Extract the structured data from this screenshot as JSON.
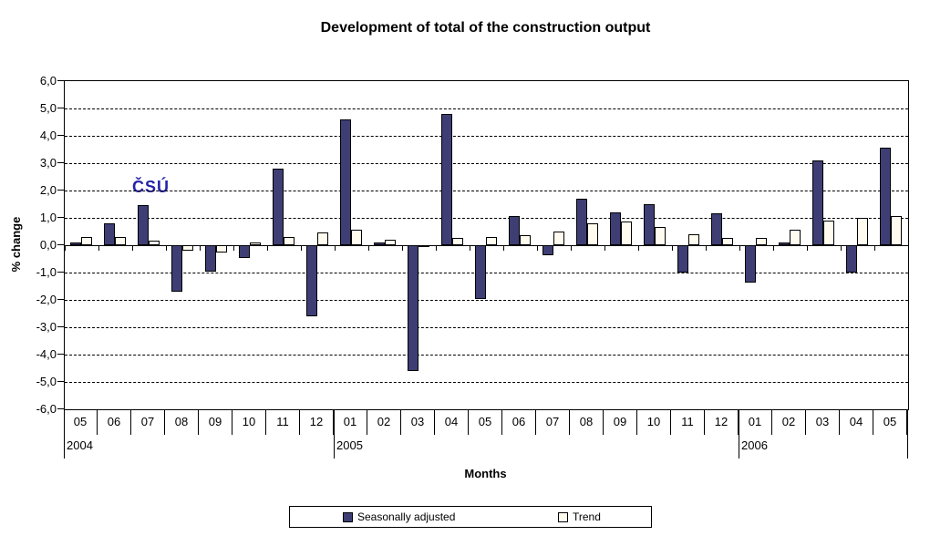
{
  "logo": {
    "text": "ČSÚ"
  },
  "chart_data": {
    "type": "bar",
    "title": "Development of total of the construction output",
    "xlabel": "Months",
    "ylabel": "% change",
    "ylim": [
      -6.0,
      6.0
    ],
    "ytick_step": 1.0,
    "grid": "horizontal-dashed",
    "decimal_separator": ",",
    "legend_position": "bottom",
    "ytick_labels": [
      "6,0",
      "5,0",
      "4,0",
      "3,0",
      "2,0",
      "1,0",
      "0,0",
      "-1,0",
      "-2,0",
      "-3,0",
      "-4,0",
      "-5,0",
      "-6,0"
    ],
    "categories": [
      "05",
      "06",
      "07",
      "08",
      "09",
      "10",
      "11",
      "12",
      "01",
      "02",
      "03",
      "04",
      "05",
      "06",
      "07",
      "08",
      "09",
      "10",
      "11",
      "12",
      "01",
      "02",
      "03",
      "04",
      "05"
    ],
    "year_groups": [
      {
        "label": "2004",
        "start": 0,
        "count": 8
      },
      {
        "label": "2005",
        "start": 8,
        "count": 12
      },
      {
        "label": "2006",
        "start": 20,
        "count": 5
      }
    ],
    "series": [
      {
        "name": "Seasonally adjusted",
        "color": "#3E3E75",
        "values": [
          0.1,
          0.8,
          1.45,
          -1.7,
          -0.95,
          -0.45,
          2.8,
          -2.6,
          4.6,
          0.1,
          -4.6,
          4.8,
          -1.95,
          1.05,
          -0.35,
          1.7,
          1.2,
          1.5,
          -1.0,
          1.15,
          -1.35,
          0.1,
          3.1,
          -1.0,
          3.55
        ]
      },
      {
        "name": "Trend",
        "color": "#FFFCEF",
        "values": [
          0.3,
          0.3,
          0.15,
          -0.2,
          -0.25,
          0.1,
          0.3,
          0.45,
          0.55,
          0.2,
          -0.05,
          0.25,
          0.3,
          0.35,
          0.5,
          0.8,
          0.85,
          0.65,
          0.4,
          0.25,
          0.25,
          0.55,
          0.9,
          1.0,
          1.05
        ]
      }
    ]
  }
}
